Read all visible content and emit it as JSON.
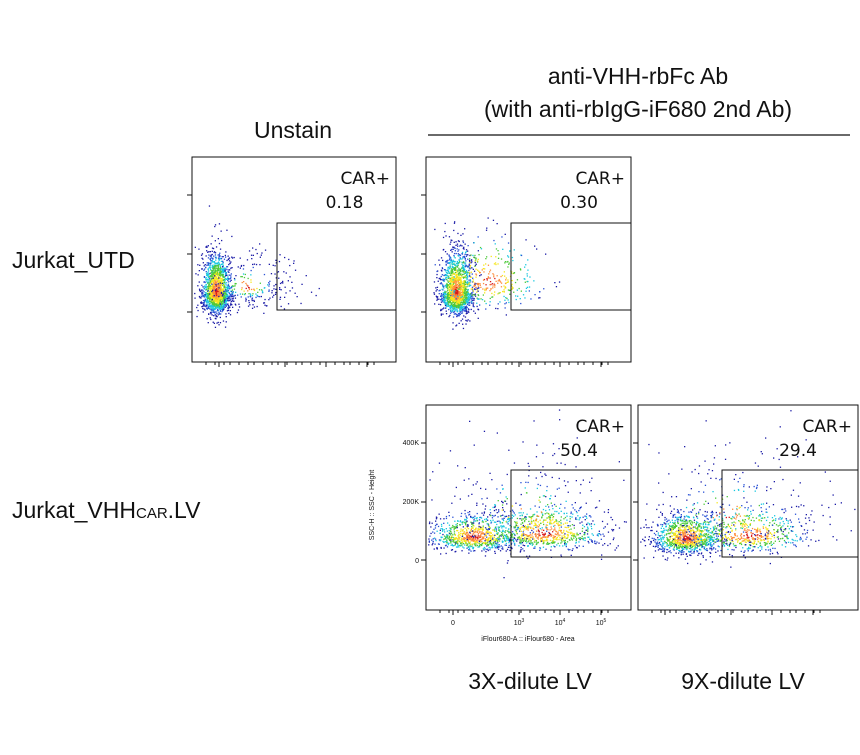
{
  "header": {
    "line1": "anti-VHH-rbFc Ab",
    "line2": "(with anti-rbIgG-iF680 2nd Ab)"
  },
  "column_label": "Unstain",
  "rows": [
    {
      "label": "Jurkat_UTD"
    },
    {
      "label": "Jurkat_VHH",
      "subscript": "CAR",
      "suffix": ".LV"
    }
  ],
  "panels": [
    {
      "gate": "CAR+",
      "value": "0.18"
    },
    {
      "gate": "CAR+",
      "value": "0.30"
    },
    {
      "gate": "CAR+",
      "value": "50.4"
    },
    {
      "gate": "CAR+",
      "value": "29.4"
    }
  ],
  "axes": {
    "ylabel": "SSC-H :: SSC - Height",
    "xlabel": "iFlour680-A :: iFlour680 - Area",
    "yticks": [
      "400K",
      "200K",
      "0"
    ],
    "xticks": [
      {
        "base": "0"
      },
      {
        "base": "10",
        "exp": "3"
      },
      {
        "base": "10",
        "exp": "4"
      },
      {
        "base": "10",
        "exp": "5"
      }
    ]
  },
  "captions": [
    "3X-dilute LV",
    "9X-dilute LV"
  ]
}
